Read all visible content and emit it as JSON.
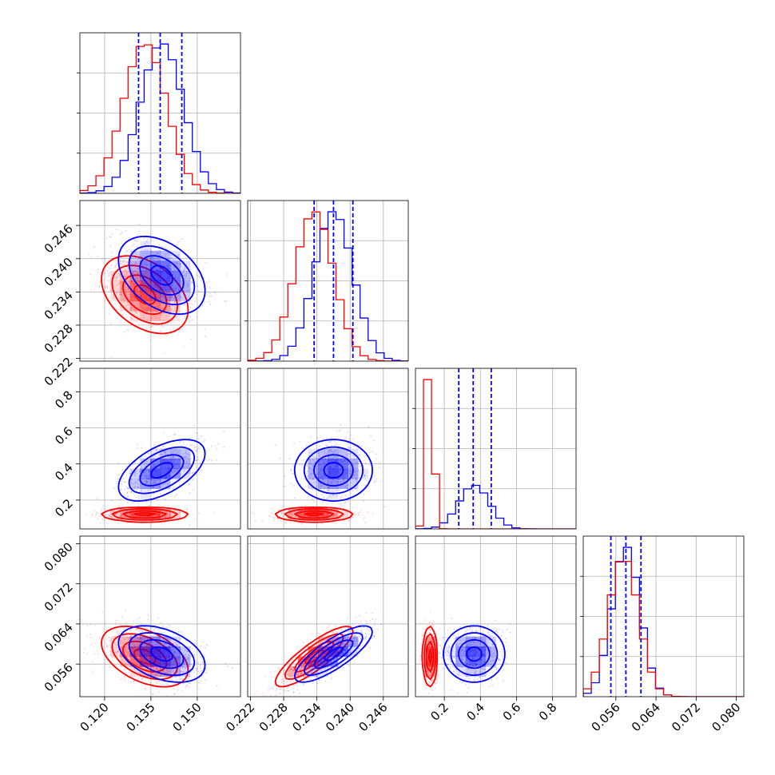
{
  "chart_data": {
    "type": "corner",
    "grid": true,
    "colors": {
      "primary": "#0000ff",
      "secondary": "#ff0000",
      "quantile": "#0000ff"
    },
    "parameters": [
      {
        "range": [
          0.112,
          0.164
        ],
        "ticks": [
          0.12,
          0.135,
          0.15
        ],
        "tick_labels": [
          "0.120",
          "0.135",
          "0.150"
        ]
      },
      {
        "range": [
          0.2215,
          0.2505
        ],
        "ticks": [
          0.222,
          0.228,
          0.234,
          0.24,
          0.246
        ],
        "tick_labels": [
          "0.222",
          "0.228",
          "0.234",
          "0.240",
          "0.246"
        ]
      },
      {
        "range": [
          0.04,
          0.93
        ],
        "ticks": [
          0.2,
          0.4,
          0.6,
          0.8
        ],
        "tick_labels": [
          "0.2",
          "0.4",
          "0.6",
          "0.8"
        ]
      },
      {
        "range": [
          0.0495,
          0.0815
        ],
        "ticks": [
          0.056,
          0.064,
          0.072,
          0.08
        ],
        "tick_labels": [
          "0.056",
          "0.064",
          "0.072",
          "0.080"
        ]
      }
    ],
    "series": [
      {
        "color": "#0000ff",
        "means": [
          0.1385,
          0.237,
          0.365,
          0.058
        ],
        "sds": [
          0.007,
          0.0035,
          0.085,
          0.0028
        ],
        "correlations": {
          "0-1": -0.4,
          "0-2": 0.55,
          "0-3": -0.4,
          "1-2": 0.0,
          "1-3": 0.8,
          "2-3": 0.0
        },
        "quantiles": [
          [
            0.131,
            0.138,
            0.145
          ],
          [
            0.2335,
            0.237,
            0.2405
          ],
          [
            0.28,
            0.36,
            0.46
          ],
          [
            0.055,
            0.058,
            0.061
          ]
        ]
      },
      {
        "color": "#ff0000",
        "means": [
          0.133,
          0.2335,
          0.12,
          0.0575
        ],
        "sds": [
          0.007,
          0.0035,
          0.02,
          0.003
        ],
        "correlations": {
          "0-1": -0.4,
          "0-2": 0.0,
          "0-3": -0.45,
          "1-2": 0.0,
          "1-3": 0.85,
          "2-3": 0.0
        }
      }
    ]
  }
}
